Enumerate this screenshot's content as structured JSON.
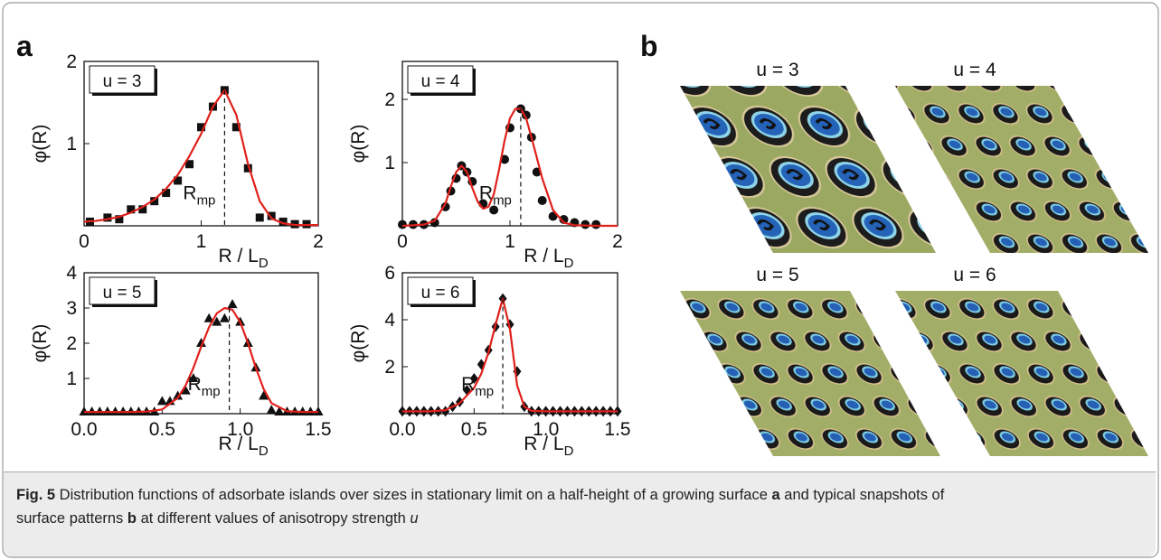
{
  "panel_a_label": "a",
  "panel_b_label": "b",
  "chart_data": [
    {
      "type": "scatter",
      "label": "u = 3",
      "y_label": "φ(R)",
      "x_label": {
        "text": "R / L",
        "sub": "D"
      },
      "annotation": {
        "text": "R",
        "sub": "mp"
      },
      "dashed_x": 1.2,
      "xlim": [
        0,
        2
      ],
      "xticks": [
        0,
        1,
        2
      ],
      "ylim": [
        0,
        2
      ],
      "yticks": [
        1,
        2
      ],
      "series": [
        {
          "marker": "square",
          "color": "#111111",
          "x": [
            0.05,
            0.2,
            0.3,
            0.4,
            0.5,
            0.6,
            0.7,
            0.8,
            0.9,
            1.0,
            1.1,
            1.2,
            1.3,
            1.4,
            1.5,
            1.6,
            1.7,
            1.8,
            1.9
          ],
          "values": [
            0.05,
            0.1,
            0.08,
            0.2,
            0.2,
            0.3,
            0.4,
            0.55,
            0.75,
            1.2,
            1.45,
            1.65,
            1.2,
            0.7,
            0.1,
            0.12,
            0.05,
            0.02,
            0.02
          ]
        },
        {
          "marker": "line",
          "color": "#e0201b",
          "x": [
            0,
            0.1,
            0.2,
            0.3,
            0.4,
            0.5,
            0.6,
            0.7,
            0.8,
            0.9,
            1.0,
            1.1,
            1.2,
            1.3,
            1.4,
            1.5,
            1.6,
            1.7,
            1.8,
            1.9,
            2.0
          ],
          "values": [
            0.05,
            0.06,
            0.08,
            0.11,
            0.16,
            0.23,
            0.32,
            0.45,
            0.62,
            0.85,
            1.12,
            1.45,
            1.65,
            1.35,
            0.75,
            0.3,
            0.09,
            0.03,
            0.01,
            0.01,
            0.01
          ]
        }
      ]
    },
    {
      "type": "scatter",
      "label": "u = 4",
      "y_label": "φ(R)",
      "x_label": {
        "text": "R / L",
        "sub": "D"
      },
      "annotation": {
        "text": "R",
        "sub": "mp"
      },
      "dashed_x": 1.1,
      "xlim": [
        0,
        2
      ],
      "xticks": [
        0,
        1,
        2
      ],
      "ylim": [
        0,
        2.6
      ],
      "yticks": [
        1,
        2
      ],
      "series": [
        {
          "marker": "circle",
          "color": "#111111",
          "x": [
            0.0,
            0.1,
            0.2,
            0.3,
            0.4,
            0.45,
            0.5,
            0.55,
            0.6,
            0.65,
            0.75,
            0.85,
            0.95,
            1.0,
            1.1,
            1.15,
            1.2,
            1.25,
            1.3,
            1.4,
            1.5,
            1.6,
            1.7,
            1.8
          ],
          "values": [
            0.02,
            0.02,
            0.02,
            0.05,
            0.3,
            0.55,
            0.75,
            0.95,
            0.85,
            0.7,
            0.35,
            0.25,
            1.05,
            1.55,
            1.85,
            1.75,
            1.4,
            0.85,
            0.4,
            0.15,
            0.1,
            0.05,
            0.02,
            0.02
          ]
        },
        {
          "marker": "line",
          "color": "#e0201b",
          "x": [
            0,
            0.1,
            0.2,
            0.3,
            0.4,
            0.45,
            0.5,
            0.55,
            0.6,
            0.65,
            0.7,
            0.75,
            0.8,
            0.85,
            0.9,
            0.95,
            1.0,
            1.05,
            1.1,
            1.15,
            1.2,
            1.3,
            1.4,
            1.5,
            1.6,
            1.8,
            2.0
          ],
          "values": [
            0,
            0.01,
            0.02,
            0.08,
            0.35,
            0.62,
            0.85,
            0.95,
            0.85,
            0.6,
            0.38,
            0.27,
            0.3,
            0.5,
            0.9,
            1.35,
            1.7,
            1.85,
            1.85,
            1.7,
            1.4,
            0.75,
            0.25,
            0.05,
            0.01,
            0,
            0
          ]
        }
      ]
    },
    {
      "type": "scatter",
      "label": "u = 5",
      "y_label": "φ(R)",
      "x_label": {
        "text": "R / L",
        "sub": "D"
      },
      "annotation": {
        "text": "R",
        "sub": "mp"
      },
      "dashed_x": 0.93,
      "xlim": [
        0,
        1.5
      ],
      "xticks": [
        {
          "value": 0,
          "label": "0.0"
        },
        {
          "value": 0.5,
          "label": "0.5"
        },
        {
          "value": 1,
          "label": "1.0"
        },
        {
          "value": 1.5,
          "label": "1.5"
        }
      ],
      "ylim": [
        0,
        4
      ],
      "yticks": [
        1,
        2,
        3,
        4
      ],
      "series": [
        {
          "marker": "triangle",
          "color": "#111111",
          "x": [
            0.0,
            0.05,
            0.1,
            0.15,
            0.2,
            0.25,
            0.3,
            0.35,
            0.4,
            0.45,
            0.5,
            0.55,
            0.6,
            0.65,
            0.7,
            0.75,
            0.8,
            0.85,
            0.9,
            0.95,
            1.0,
            1.05,
            1.1,
            1.15,
            1.2,
            1.25,
            1.3,
            1.35,
            1.4,
            1.45,
            1.5
          ],
          "values": [
            0.05,
            0.05,
            0.05,
            0.05,
            0.05,
            0.05,
            0.05,
            0.05,
            0.05,
            0.05,
            0.35,
            0.35,
            0.5,
            0.65,
            1.0,
            2.0,
            2.7,
            2.6,
            2.7,
            3.1,
            2.6,
            2.0,
            1.3,
            0.5,
            0.1,
            0.05,
            0.05,
            0.05,
            0.05,
            0.05,
            0.05
          ]
        },
        {
          "marker": "line",
          "color": "#e0201b",
          "x": [
            0,
            0.1,
            0.2,
            0.3,
            0.4,
            0.5,
            0.6,
            0.65,
            0.7,
            0.75,
            0.8,
            0.85,
            0.9,
            0.95,
            1.0,
            1.05,
            1.1,
            1.15,
            1.2,
            1.3,
            1.4,
            1.5
          ],
          "values": [
            0.05,
            0.05,
            0.05,
            0.05,
            0.06,
            0.12,
            0.45,
            0.8,
            1.3,
            1.9,
            2.45,
            2.85,
            3.0,
            2.95,
            2.6,
            2.0,
            1.3,
            0.7,
            0.3,
            0.07,
            0.05,
            0.05
          ]
        }
      ]
    },
    {
      "type": "scatter",
      "label": "u = 6",
      "y_label": "φ(R)",
      "x_label": {
        "text": "R / L",
        "sub": "D"
      },
      "annotation": {
        "text": "R",
        "sub": "mp"
      },
      "dashed_x": 0.7,
      "xlim": [
        0,
        1.5
      ],
      "xticks": [
        {
          "value": 0,
          "label": "0.0"
        },
        {
          "value": 0.5,
          "label": "0.5"
        },
        {
          "value": 1,
          "label": "1.0"
        },
        {
          "value": 1.5,
          "label": "1.5"
        }
      ],
      "ylim": [
        0,
        6
      ],
      "yticks": [
        2,
        4,
        6
      ],
      "series": [
        {
          "marker": "diamond",
          "color": "#111111",
          "x": [
            0.0,
            0.05,
            0.1,
            0.15,
            0.2,
            0.25,
            0.3,
            0.35,
            0.4,
            0.45,
            0.5,
            0.55,
            0.6,
            0.65,
            0.7,
            0.75,
            0.8,
            0.85,
            0.9,
            0.95,
            1.0,
            1.05,
            1.1,
            1.15,
            1.2,
            1.25,
            1.3,
            1.35,
            1.4,
            1.45,
            1.5
          ],
          "values": [
            0.1,
            0.1,
            0.1,
            0.1,
            0.1,
            0.1,
            0.1,
            0.3,
            0.5,
            1.0,
            1.5,
            2.1,
            2.7,
            3.7,
            4.9,
            3.8,
            1.8,
            0.3,
            0.1,
            0.1,
            0.1,
            0.1,
            0.1,
            0.1,
            0.1,
            0.1,
            0.1,
            0.1,
            0.1,
            0.1,
            0.1
          ]
        },
        {
          "marker": "line",
          "color": "#e0201b",
          "x": [
            0,
            0.1,
            0.2,
            0.3,
            0.4,
            0.5,
            0.55,
            0.6,
            0.65,
            0.7,
            0.75,
            0.8,
            0.85,
            0.9,
            1.0,
            1.1,
            1.2,
            1.3,
            1.4,
            1.5
          ],
          "values": [
            0.1,
            0.1,
            0.1,
            0.15,
            0.45,
            1.1,
            1.7,
            2.6,
            3.8,
            4.9,
            3.6,
            1.2,
            0.3,
            0.12,
            0.1,
            0.1,
            0.1,
            0.1,
            0.1,
            0.1
          ]
        }
      ]
    }
  ],
  "snapshots": [
    {
      "label": "u = 3"
    },
    {
      "label": "u = 4"
    },
    {
      "label": "u = 5"
    },
    {
      "label": "u = 6"
    }
  ],
  "caption": {
    "lines": [
      [
        {
          "text": "Fig. 5",
          "style": "bold"
        },
        {
          "text": " Distribution functions of adsorbate islands over sizes in stationary limit on a half-height of a growing surface ",
          "style": "plain"
        },
        {
          "text": "a",
          "style": "bold"
        },
        {
          "text": " and typical snapshots of",
          "style": "plain"
        }
      ],
      [
        {
          "text": "surface patterns ",
          "style": "plain"
        },
        {
          "text": "b",
          "style": "bold"
        },
        {
          "text": " at different values of anisotropy strength ",
          "style": "plain"
        },
        {
          "text": "u",
          "style": "italic"
        }
      ]
    ]
  }
}
